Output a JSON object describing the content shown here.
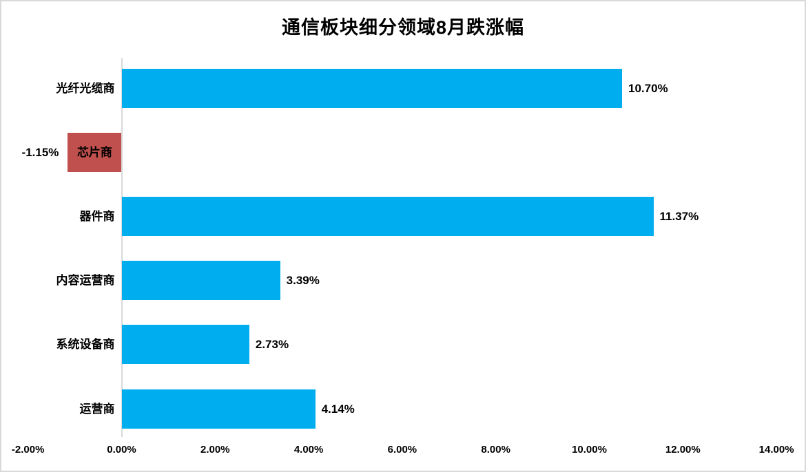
{
  "chart_data": {
    "type": "bar",
    "orientation": "horizontal",
    "title": "通信板块细分领域8月跌涨幅",
    "categories": [
      "光纤光缆商",
      "芯片商",
      "器件商",
      "内容运营商",
      "系统设备商",
      "运营商"
    ],
    "values": [
      10.7,
      -1.15,
      11.37,
      3.39,
      2.73,
      4.14
    ],
    "value_labels": [
      "10.70%",
      "-1.15%",
      "11.37%",
      "3.39%",
      "2.73%",
      "4.14%"
    ],
    "x_tick_labels": [
      "-2.00%",
      "0.00%",
      "2.00%",
      "4.00%",
      "6.00%",
      "8.00%",
      "10.00%",
      "12.00%",
      "14.00%"
    ],
    "x_tick_values": [
      -2,
      0,
      2,
      4,
      6,
      8,
      10,
      12,
      14
    ],
    "xlim": [
      -2,
      14
    ],
    "xlabel": "",
    "ylabel": "",
    "grid": false,
    "legend": "none",
    "colors": {
      "bar_positive": "#00AEEF",
      "bar_negative": "#C0504D",
      "axis_line": "#D9D9D9",
      "chart_border": "#D9D9D9",
      "text": "#000000",
      "background": "#FFFFFF"
    }
  }
}
